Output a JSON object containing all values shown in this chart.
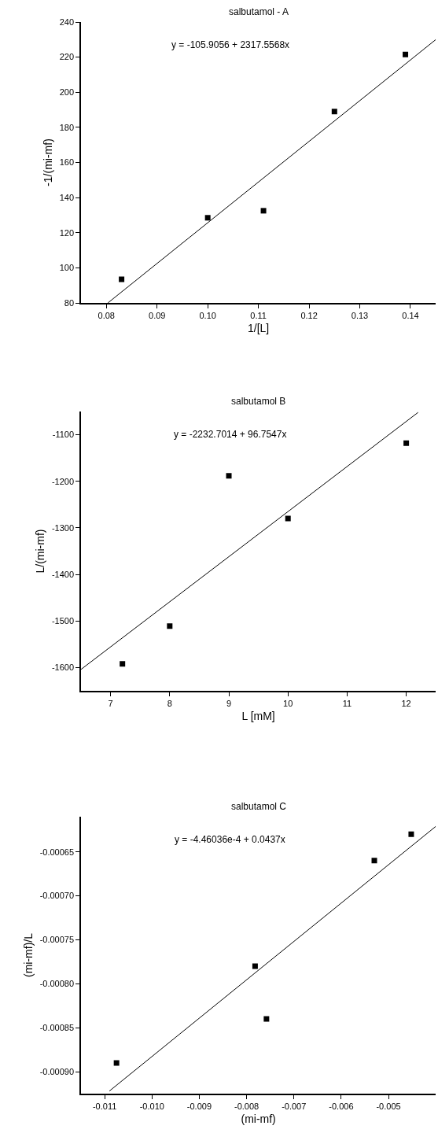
{
  "chart_data": [
    {
      "type": "scatter",
      "title": "salbutamol - A",
      "xlabel": "1/[L]",
      "ylabel": "-1/(mi-mf)",
      "annotations": [
        "y = -105.9056 + 2317.5568x"
      ],
      "series": [
        {
          "marker": "square",
          "color": "#000000",
          "x": [
            0.083,
            0.1,
            0.111,
            0.125,
            0.139
          ],
          "values": [
            93.5,
            128.5,
            132.5,
            189,
            221.5
          ]
        },
        {
          "type": "line",
          "line_style": "solid",
          "color": "#000000",
          "x": [
            0.0803,
            0.145
          ],
          "values": [
            80,
            230
          ]
        }
      ],
      "xlim": [
        0.075,
        0.145
      ],
      "ylim": [
        80,
        240
      ],
      "xticks": [
        {
          "value": 0.08,
          "label": "0.08"
        },
        {
          "value": 0.09,
          "label": "0.09"
        },
        {
          "value": 0.1,
          "label": "0.10"
        },
        {
          "value": 0.11,
          "label": "0.11"
        },
        {
          "value": 0.12,
          "label": "0.12"
        },
        {
          "value": 0.13,
          "label": "0.13"
        },
        {
          "value": 0.14,
          "label": "0.14"
        }
      ],
      "yticks": [
        80,
        100,
        120,
        140,
        160,
        180,
        200,
        220,
        240
      ],
      "grid": false,
      "legend": false
    },
    {
      "type": "scatter",
      "title": "salbutamol B",
      "xlabel": "L [mM]",
      "ylabel": "L/(mi-mf)",
      "annotations": [
        "y = -2232.7014 + 96.7547x"
      ],
      "series": [
        {
          "marker": "square",
          "color": "#000000",
          "x": [
            7.2,
            8,
            9,
            10,
            12
          ],
          "values": [
            -1592,
            -1511,
            -1188,
            -1280,
            -1118
          ]
        },
        {
          "type": "line",
          "line_style": "solid",
          "color": "#000000",
          "x": [
            6.5,
            12.2
          ],
          "values": [
            -1604,
            -1052
          ]
        }
      ],
      "xlim": [
        6.5,
        12.5
      ],
      "ylim": [
        -1650,
        -1050
      ],
      "xticks": [
        7,
        8,
        9,
        10,
        11,
        12
      ],
      "yticks": [
        -1600,
        -1500,
        -1400,
        -1300,
        -1200,
        -1100
      ],
      "grid": false,
      "legend": false
    },
    {
      "type": "scatter",
      "title": "salbutamol C",
      "xlabel": "(mi-mf)",
      "ylabel": "(mi-mf)/L",
      "annotations": [
        "y = -4.46036e-4 + 0.0437x"
      ],
      "series": [
        {
          "marker": "square",
          "color": "#000000",
          "x": [
            -0.01075,
            -0.00782,
            -0.00758,
            -0.0053,
            -0.00452
          ],
          "values": [
            -0.00089,
            -0.00078,
            -0.00084,
            -0.00066,
            -0.00063
          ]
        },
        {
          "type": "line",
          "line_style": "solid",
          "color": "#000000",
          "x": [
            -0.0109,
            -0.004
          ],
          "values": [
            -0.000922,
            -0.000621
          ]
        }
      ],
      "xlim": [
        -0.0115,
        -0.004
      ],
      "ylim": [
        -0.000925,
        -0.00061
      ],
      "xticks": [
        {
          "value": -0.011,
          "label": "-0.011"
        },
        {
          "value": -0.01,
          "label": "-0.010"
        },
        {
          "value": -0.009,
          "label": "-0.009"
        },
        {
          "value": -0.008,
          "label": "-0.008"
        },
        {
          "value": -0.007,
          "label": "-0.007"
        },
        {
          "value": -0.006,
          "label": "-0.006"
        },
        {
          "value": -0.005,
          "label": "-0.005"
        }
      ],
      "yticks": [
        {
          "value": -0.0009,
          "label": "-0.00090"
        },
        {
          "value": -0.00085,
          "label": "-0.00085"
        },
        {
          "value": -0.0008,
          "label": "-0.00080"
        },
        {
          "value": -0.00075,
          "label": "-0.00075"
        },
        {
          "value": -0.0007,
          "label": "-0.00070"
        },
        {
          "value": -0.00065,
          "label": "-0.00065"
        }
      ],
      "grid": false,
      "legend": false
    }
  ]
}
